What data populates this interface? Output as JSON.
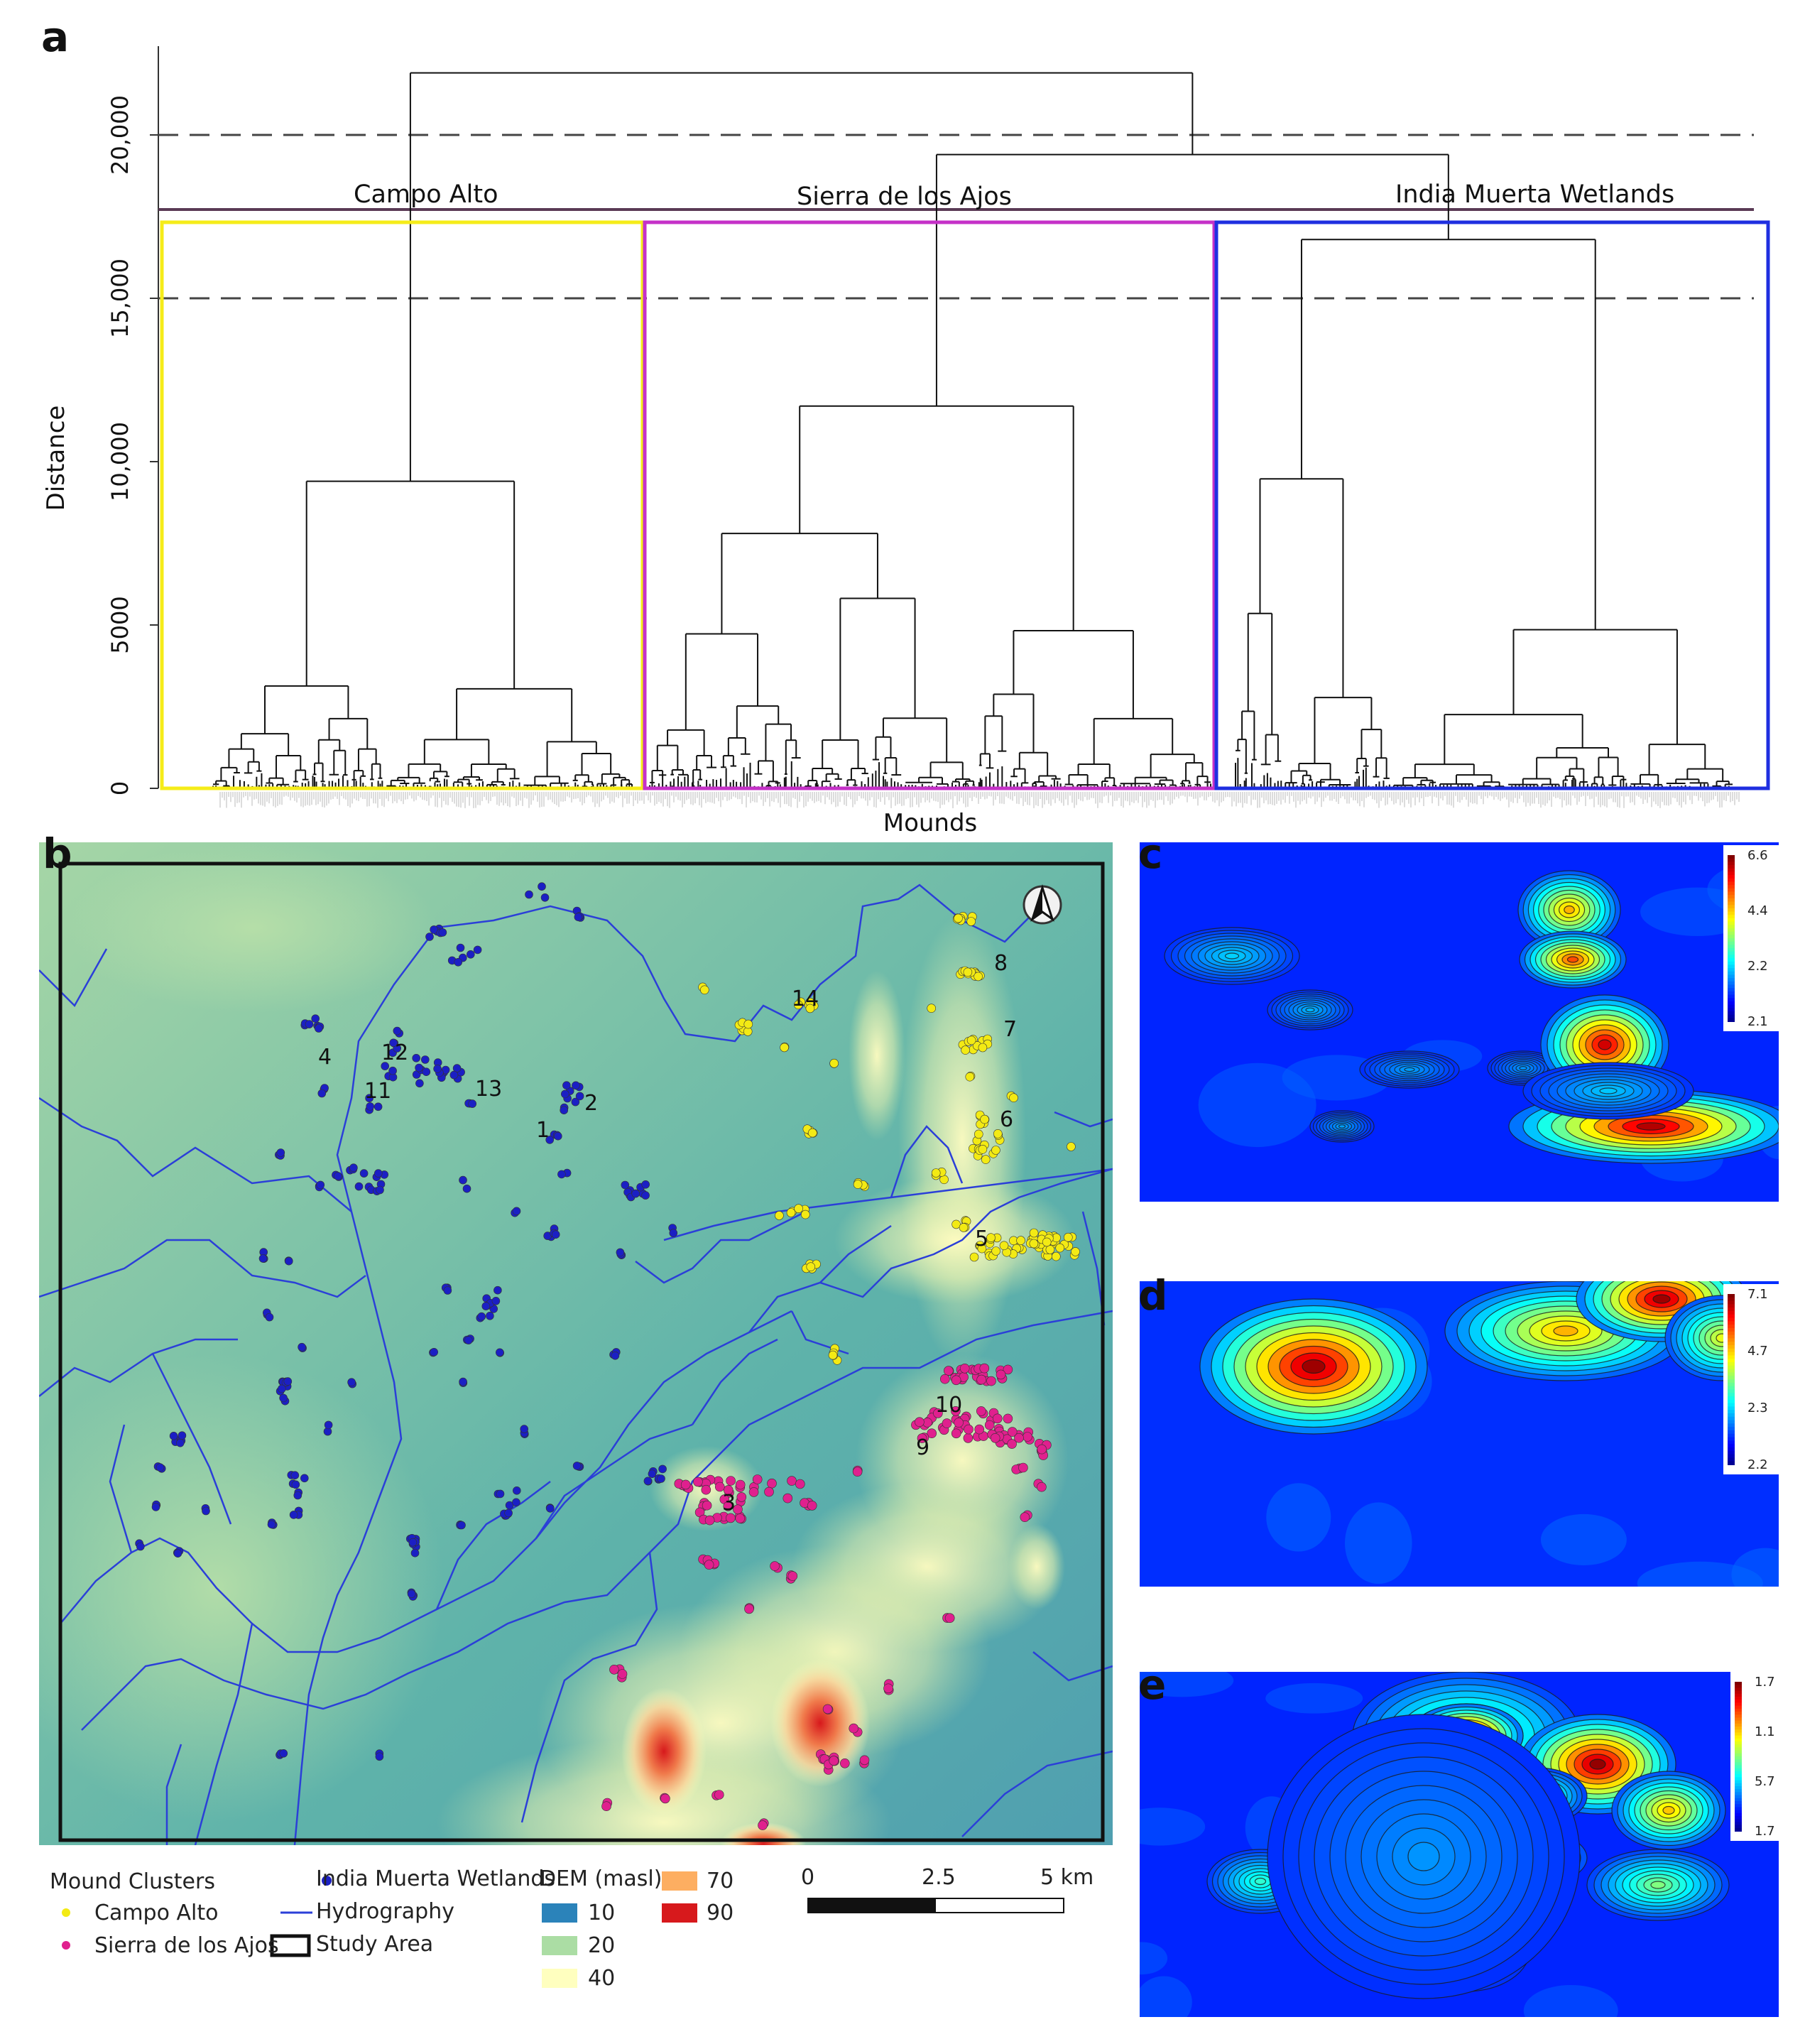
{
  "panels": {
    "a": "a",
    "b": "b",
    "c": "c",
    "d": "d",
    "e": "e"
  },
  "dendrogram": {
    "ylabel": "Distance",
    "xlabel": "Mounds",
    "yticks": [
      "0",
      "5000",
      "10,000",
      "15,000",
      "20,000"
    ],
    "cut_lines": [
      15000,
      20000
    ],
    "clusters": [
      {
        "name": "Campo Alto",
        "color": "#f5ec19"
      },
      {
        "name": "Sierra de los Ajos",
        "color": "#c531c8"
      },
      {
        "name": "India Muerta Wetlands",
        "color": "#1f2fe0"
      }
    ],
    "root_height": 21900,
    "merge_ajos_india": 19400,
    "campo_alto_root": 9400,
    "sierra_root": 11700,
    "india_root": 16800
  },
  "map": {
    "north_symbol": "north-arrow",
    "cluster_labels": [
      "1",
      "2",
      "3",
      "4",
      "5",
      "6",
      "7",
      "8",
      "9",
      "10",
      "11",
      "12",
      "13",
      "14"
    ],
    "colors": {
      "campo_alto": "#f3ea14",
      "sierra": "#e0208e",
      "india": "#1b1fc4",
      "hydro": "#2b3fd8"
    }
  },
  "heatmaps": [
    {
      "id": "c",
      "scale": [
        "6.6",
        "4.4",
        "2.2",
        "2.1"
      ]
    },
    {
      "id": "d",
      "scale": [
        "7.1",
        "4.7",
        "2.3",
        "2.2"
      ]
    },
    {
      "id": "e",
      "scale": [
        "1.7",
        "1.1",
        "5.7",
        "1.7"
      ]
    }
  ],
  "legend": {
    "title": "Mound Clusters",
    "campo_alto": "Campo Alto",
    "sierra": "Sierra de los Ajos",
    "india": "India Muerta Wetlands",
    "hydro": "Hydrography",
    "study": "Study Area",
    "dem_title": "DEM (masl)",
    "dem": [
      {
        "label": "10",
        "color": "#2b83ba"
      },
      {
        "label": "20",
        "color": "#abdda4"
      },
      {
        "label": "40",
        "color": "#ffffbf"
      },
      {
        "label": "70",
        "color": "#fdae61"
      },
      {
        "label": "90",
        "color": "#d7191c"
      }
    ],
    "scalebar": [
      "0",
      "2.5",
      "5 km"
    ]
  }
}
